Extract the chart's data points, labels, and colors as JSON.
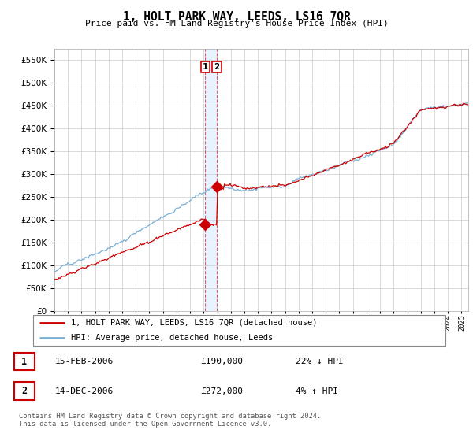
{
  "title": "1, HOLT PARK WAY, LEEDS, LS16 7QR",
  "subtitle": "Price paid vs. HM Land Registry's House Price Index (HPI)",
  "ytick_values": [
    0,
    50000,
    100000,
    150000,
    200000,
    250000,
    300000,
    350000,
    400000,
    450000,
    500000,
    550000
  ],
  "hpi_color": "#7bafd4",
  "price_color": "#cc0000",
  "t1_x": 2006.12,
  "t1_price": 190000,
  "t2_x": 2006.96,
  "t2_price": 272000,
  "vband_x1": 2006.12,
  "vband_x2": 2006.96,
  "legend_line1": "1, HOLT PARK WAY, LEEDS, LS16 7QR (detached house)",
  "legend_line2": "HPI: Average price, detached house, Leeds",
  "table_row1": [
    "1",
    "15-FEB-2006",
    "£190,000",
    "22% ↓ HPI"
  ],
  "table_row2": [
    "2",
    "14-DEC-2006",
    "£272,000",
    "4% ↑ HPI"
  ],
  "footnote": "Contains HM Land Registry data © Crown copyright and database right 2024.\nThis data is licensed under the Open Government Licence v3.0.",
  "background_color": "#ffffff",
  "grid_color": "#cccccc",
  "xmin": 1995,
  "xmax": 2025.5,
  "ymin": 0,
  "ymax": 575000
}
